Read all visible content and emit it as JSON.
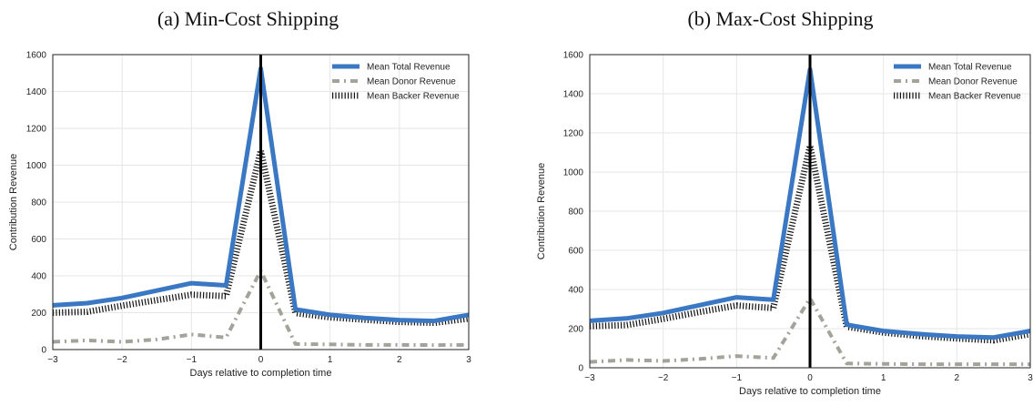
{
  "colors": {
    "total": "#3a78c3",
    "donor": "#a4a29a",
    "backer": "#111111",
    "vline": "#000000",
    "grid": "#e6e6e6"
  },
  "chart_data": [
    {
      "type": "line",
      "title": "(a) Min-Cost Shipping",
      "xlabel": "Days relative to completion time",
      "ylabel": "Contribution Revenue",
      "xlim": [
        -3,
        3
      ],
      "ylim": [
        0,
        1600
      ],
      "xticks": [
        -3,
        -2,
        -1,
        0,
        1,
        2,
        3
      ],
      "yticks": [
        0,
        200,
        400,
        600,
        800,
        1000,
        1200,
        1400,
        1600
      ],
      "xtick_labels": [
        "−3",
        "−2",
        "−1",
        "0",
        "1",
        "2",
        "3"
      ],
      "grid": true,
      "legend": "top-right",
      "vertical_line_x": 0,
      "series": [
        {
          "name": "Mean Total Revenue",
          "style": "solid",
          "points": [
            [
              -3,
              240
            ],
            [
              -2.5,
              252
            ],
            [
              -2,
              280
            ],
            [
              -1.5,
              320
            ],
            [
              -1,
              360
            ],
            [
              -0.5,
              348
            ],
            [
              0,
              1525
            ],
            [
              0.5,
              218
            ],
            [
              1,
              188
            ],
            [
              1.5,
              172
            ],
            [
              2,
              160
            ],
            [
              2.5,
              155
            ],
            [
              3,
              188
            ]
          ]
        },
        {
          "name": "Mean Donor Revenue",
          "style": "dashdot",
          "points": [
            [
              -3,
              42
            ],
            [
              -2.5,
              50
            ],
            [
              -2,
              42
            ],
            [
              -1.5,
              55
            ],
            [
              -1,
              82
            ],
            [
              -0.5,
              65
            ],
            [
              0,
              428
            ],
            [
              0.5,
              30
            ],
            [
              1,
              28
            ],
            [
              1.5,
              25
            ],
            [
              2,
              25
            ],
            [
              2.5,
              24
            ],
            [
              3,
              25
            ]
          ]
        },
        {
          "name": "Mean Backer Revenue",
          "style": "hatched",
          "points": [
            [
              -3,
              200
            ],
            [
              -2.5,
              205
            ],
            [
              -2,
              238
            ],
            [
              -1.5,
              268
            ],
            [
              -1,
              298
            ],
            [
              -0.5,
              290
            ],
            [
              0,
              1080
            ],
            [
              0.5,
              198
            ],
            [
              1,
              175
            ],
            [
              1.5,
              162
            ],
            [
              2,
              150
            ],
            [
              2.5,
              145
            ],
            [
              3,
              168
            ]
          ]
        }
      ]
    },
    {
      "type": "line",
      "title": "(b) Max-Cost Shipping",
      "xlabel": "Days relative to completion time",
      "ylabel": "Contribution Revenue",
      "xlim": [
        -3,
        3
      ],
      "ylim": [
        0,
        1600
      ],
      "xticks": [
        -3,
        -2,
        -1,
        0,
        1,
        2,
        3
      ],
      "yticks": [
        0,
        200,
        400,
        600,
        800,
        1000,
        1200,
        1400,
        1600
      ],
      "xtick_labels": [
        "−3",
        "−2",
        "−1",
        "0",
        "1",
        "2",
        "3"
      ],
      "grid": true,
      "legend": "top-right",
      "vertical_line_x": 0,
      "series": [
        {
          "name": "Mean Total Revenue",
          "style": "solid",
          "points": [
            [
              -3,
              240
            ],
            [
              -2.5,
              252
            ],
            [
              -2,
              280
            ],
            [
              -1.5,
              320
            ],
            [
              -1,
              360
            ],
            [
              -0.5,
              348
            ],
            [
              0,
              1525
            ],
            [
              0.5,
              220
            ],
            [
              1,
              188
            ],
            [
              1.5,
              172
            ],
            [
              2,
              160
            ],
            [
              2.5,
              155
            ],
            [
              3,
              188
            ]
          ]
        },
        {
          "name": "Mean Donor Revenue",
          "style": "dashdot",
          "points": [
            [
              -3,
              30
            ],
            [
              -2.5,
              40
            ],
            [
              -2,
              35
            ],
            [
              -1.5,
              45
            ],
            [
              -1,
              60
            ],
            [
              -0.5,
              50
            ],
            [
              0,
              355
            ],
            [
              0.5,
              22
            ],
            [
              1,
              20
            ],
            [
              1.5,
              18
            ],
            [
              2,
              18
            ],
            [
              2.5,
              18
            ],
            [
              3,
              18
            ]
          ]
        },
        {
          "name": "Mean Backer Revenue",
          "style": "hatched",
          "points": [
            [
              -3,
              212
            ],
            [
              -2.5,
              218
            ],
            [
              -2,
              250
            ],
            [
              -1.5,
              285
            ],
            [
              -1,
              318
            ],
            [
              -0.5,
              305
            ],
            [
              0,
              1135
            ],
            [
              0.5,
              210
            ],
            [
              1,
              180
            ],
            [
              1.5,
              162
            ],
            [
              2,
              150
            ],
            [
              2.5,
              140
            ],
            [
              3,
              172
            ]
          ]
        }
      ]
    }
  ]
}
